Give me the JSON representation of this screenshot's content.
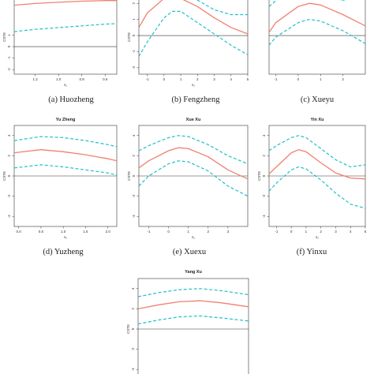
{
  "colors": {
    "estimate": "#f08070",
    "band": "#20c0c8",
    "zero": "#333333",
    "frame": "#333333"
  },
  "chart_data": [
    {
      "type": "line",
      "caption": "(a) Huozheng",
      "title": "",
      "xlabel": "s₂",
      "ylabel": "CSTE",
      "xlim": [
        1.38,
        0.5
      ],
      "ylim": [
        -2.4,
        4.6
      ],
      "xticks": [
        1.2,
        1.0,
        0.8,
        0.6
      ],
      "xtick_labels": [
        "1.2",
        "1.0",
        "0.8",
        "0.6"
      ],
      "yticks": [
        -2,
        -1,
        0,
        1
      ],
      "ytick_labels": [
        "-2",
        "-1",
        "0",
        "1"
      ],
      "grid": false,
      "zero_line": true,
      "series": [
        {
          "style": "solid",
          "x": [
            1.38,
            1.2,
            1.0,
            0.8,
            0.6,
            0.5
          ],
          "y": [
            3.6,
            3.75,
            3.85,
            3.95,
            4.0,
            4.0
          ]
        },
        {
          "style": "dashed",
          "x": [
            1.38,
            1.2,
            1.0,
            0.8,
            0.6,
            0.5
          ],
          "y": [
            1.3,
            1.5,
            1.65,
            1.8,
            1.95,
            2.0
          ]
        }
      ]
    },
    {
      "type": "line",
      "caption": "(b) Fengzheng",
      "title": "",
      "xlabel": "s₂",
      "ylabel": "CSTE",
      "xlim": [
        -1.5,
        5
      ],
      "ylim": [
        -2.4,
        2.6
      ],
      "xticks": [
        -1,
        0,
        1,
        2,
        3,
        4,
        5
      ],
      "xtick_labels": [
        "-1",
        "0",
        "1",
        "2",
        "3",
        "4",
        "5"
      ],
      "yticks": [
        -2,
        -1,
        0,
        1,
        2
      ],
      "ytick_labels": [
        "-2",
        "-1",
        "0",
        "1",
        "2"
      ],
      "grid": false,
      "zero_line": true,
      "series": [
        {
          "style": "solid",
          "x": [
            -1.5,
            -1,
            0,
            1,
            2,
            3,
            4,
            5
          ],
          "y": [
            0.5,
            1.4,
            2.3,
            2.3,
            1.8,
            1.1,
            0.5,
            0.1
          ]
        },
        {
          "style": "dashed",
          "x": [
            -1.5,
            -1,
            0,
            0.5,
            1,
            2,
            3,
            4,
            5
          ],
          "y": [
            -1.3,
            -0.4,
            1.1,
            1.5,
            1.5,
            0.8,
            0.1,
            -0.6,
            -1.2
          ]
        },
        {
          "style": "dashed",
          "x": [
            1.5,
            2,
            3,
            4,
            5
          ],
          "y": [
            2.6,
            2.2,
            1.6,
            1.3,
            1.3
          ]
        }
      ]
    },
    {
      "type": "line",
      "caption": "(c) Xueyu",
      "title": "",
      "xlabel": "",
      "ylabel": "",
      "xlim": [
        -1.3,
        3
      ],
      "ylim": [
        -2.4,
        2.6
      ],
      "xticks": [
        -1,
        0,
        1,
        2
      ],
      "xtick_labels": [
        "-1",
        "0",
        "1",
        "2"
      ],
      "yticks": [],
      "ytick_labels": [],
      "grid": false,
      "zero_line": true,
      "series": [
        {
          "style": "solid",
          "x": [
            -1.3,
            -1,
            0,
            0.5,
            1,
            2,
            3
          ],
          "y": [
            0.2,
            0.8,
            1.8,
            2.0,
            1.9,
            1.3,
            0.6
          ]
        },
        {
          "style": "dashed",
          "x": [
            -1.3,
            -1,
            0,
            0.5,
            1,
            2,
            3
          ],
          "y": [
            -0.6,
            -0.1,
            0.8,
            1.0,
            0.9,
            0.3,
            -0.5
          ]
        },
        {
          "style": "dashed",
          "x": [
            -1.3,
            -0.8,
            0,
            1,
            2,
            3
          ],
          "y": [
            1.8,
            2.4,
            2.6,
            2.4,
            2.2,
            2.4
          ]
        }
      ]
    },
    {
      "type": "line",
      "caption": "(d) Yuzheng",
      "title": "Yu Zheng",
      "xlabel": "s₂",
      "ylabel": "CSTE",
      "xlim": [
        -0.1,
        2.2
      ],
      "ylim": [
        -5,
        5
      ],
      "xticks": [
        0.0,
        0.5,
        1.0,
        1.5,
        2.0
      ],
      "xtick_labels": [
        "0.0",
        "0.5",
        "1.0",
        "1.5",
        "2.0"
      ],
      "yticks": [
        -4,
        -2,
        0,
        2,
        4
      ],
      "ytick_labels": [
        "-4",
        "-2",
        "0",
        "2",
        "4"
      ],
      "grid": false,
      "zero_line": true,
      "series": [
        {
          "style": "solid",
          "x": [
            -0.1,
            0.5,
            1.0,
            1.5,
            2.0,
            2.2
          ],
          "y": [
            2.3,
            2.6,
            2.4,
            2.1,
            1.7,
            1.5
          ]
        },
        {
          "style": "dashed",
          "x": [
            -0.1,
            0.5,
            1.0,
            1.5,
            2.0,
            2.2
          ],
          "y": [
            3.5,
            3.9,
            3.8,
            3.5,
            3.1,
            2.9
          ]
        },
        {
          "style": "dashed",
          "x": [
            -0.1,
            0.5,
            1.0,
            1.5,
            2.0,
            2.2
          ],
          "y": [
            0.8,
            1.1,
            0.9,
            0.6,
            0.3,
            0.1
          ]
        }
      ]
    },
    {
      "type": "line",
      "caption": "(e) Xuexu",
      "title": "Xue Xu",
      "xlabel": "s₂",
      "ylabel": "CSTE",
      "xlim": [
        -1.5,
        4
      ],
      "ylim": [
        -5,
        5
      ],
      "xticks": [
        -1,
        0,
        1,
        2,
        3
      ],
      "xtick_labels": [
        "-1",
        "0",
        "1",
        "2",
        "3"
      ],
      "yticks": [
        -4,
        -2,
        0,
        2,
        4
      ],
      "ytick_labels": [
        "-4",
        "-2",
        "0",
        "2",
        "4"
      ],
      "grid": false,
      "zero_line": true,
      "series": [
        {
          "style": "solid",
          "x": [
            -1.5,
            -1,
            0,
            0.5,
            1,
            2,
            3,
            4
          ],
          "y": [
            0.8,
            1.5,
            2.5,
            2.8,
            2.7,
            1.9,
            0.6,
            -0.3
          ]
        },
        {
          "style": "dashed",
          "x": [
            -1.5,
            -1,
            0,
            0.5,
            1,
            2,
            3,
            4
          ],
          "y": [
            2.5,
            3.0,
            3.8,
            4.0,
            3.9,
            3.1,
            2.0,
            1.2
          ]
        },
        {
          "style": "dashed",
          "x": [
            -1.5,
            -1,
            0,
            0.5,
            1,
            2,
            3,
            4
          ],
          "y": [
            -1.0,
            0.0,
            1.2,
            1.5,
            1.4,
            0.5,
            -1.0,
            -2.0
          ]
        }
      ]
    },
    {
      "type": "line",
      "caption": "(f) Yinxu",
      "title": "Yin Xu",
      "xlabel": "s₂",
      "ylabel": "CSTE",
      "xlim": [
        -1.5,
        5
      ],
      "ylim": [
        -5,
        5
      ],
      "xticks": [
        -1,
        0,
        1,
        2,
        3,
        4,
        5
      ],
      "xtick_labels": [
        "-1",
        "0",
        "1",
        "2",
        "3",
        "4",
        "5"
      ],
      "yticks": [
        -4,
        -2,
        0,
        2,
        4
      ],
      "ytick_labels": [
        "-4",
        "-2",
        "0",
        "2",
        "4"
      ],
      "grid": false,
      "zero_line": true,
      "series": [
        {
          "style": "solid",
          "x": [
            -1.5,
            -1,
            0,
            0.5,
            1,
            2,
            3,
            4,
            5
          ],
          "y": [
            0.2,
            0.9,
            2.3,
            2.6,
            2.4,
            1.3,
            0.3,
            -0.2,
            -0.3
          ]
        },
        {
          "style": "dashed",
          "x": [
            -1.5,
            -1,
            0,
            0.5,
            1,
            2,
            3,
            4,
            5
          ],
          "y": [
            2.5,
            3.0,
            3.8,
            4.0,
            3.8,
            2.7,
            1.6,
            0.9,
            1.1
          ]
        },
        {
          "style": "dashed",
          "x": [
            -1.5,
            -1,
            0,
            0.5,
            1,
            2,
            3,
            4,
            5
          ],
          "y": [
            -1.5,
            -0.7,
            0.6,
            0.9,
            0.7,
            -0.4,
            -1.7,
            -2.8,
            -3.2
          ]
        }
      ]
    },
    {
      "type": "line",
      "caption": "",
      "title": "Yang Xu",
      "xlabel": "",
      "ylabel": "CSTE",
      "xlim": [
        -0.1,
        1.5
      ],
      "ylim": [
        -5,
        5
      ],
      "xticks": [],
      "xtick_labels": [],
      "yticks": [
        -4,
        -2,
        0,
        2,
        4
      ],
      "ytick_labels": [
        "-4",
        "-2",
        "0",
        "2",
        "4"
      ],
      "grid": false,
      "zero_line": true,
      "series": [
        {
          "style": "solid",
          "x": [
            -0.1,
            0.2,
            0.5,
            0.8,
            1.1,
            1.5
          ],
          "y": [
            2.0,
            2.4,
            2.7,
            2.8,
            2.6,
            2.2
          ]
        },
        {
          "style": "dashed",
          "x": [
            -0.1,
            0.2,
            0.5,
            0.8,
            1.1,
            1.5
          ],
          "y": [
            3.2,
            3.6,
            3.9,
            4.0,
            3.8,
            3.4
          ]
        },
        {
          "style": "dashed",
          "x": [
            -0.1,
            0.2,
            0.5,
            0.8,
            1.1,
            1.5
          ],
          "y": [
            0.5,
            0.9,
            1.2,
            1.3,
            1.1,
            0.8
          ]
        }
      ]
    }
  ]
}
